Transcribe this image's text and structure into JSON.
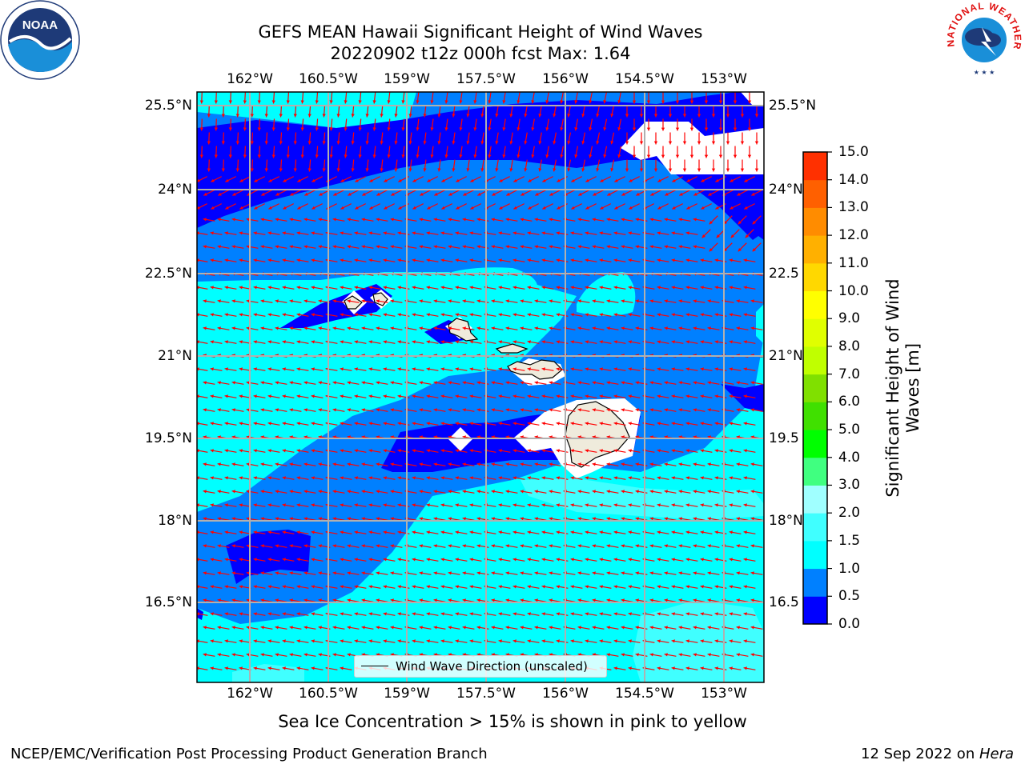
{
  "title": {
    "line1": "GEFS MEAN Hawaii Significant Height of Wind Waves",
    "line2": "20220902 t12z 000h fcst   Max: 1.64"
  },
  "map": {
    "lon_ticks": [
      "162°W",
      "160.5°W",
      "159°W",
      "157.5°W",
      "156°W",
      "154.5°W",
      "153°W"
    ],
    "lat_ticks_left": [
      "25.5°N",
      "24°N",
      "22.5°N",
      "21°N",
      "19.5°N",
      "18°N",
      "16.5°N"
    ],
    "lat_ticks_right": [
      "25.5°N",
      "24°N",
      "22.5",
      "21°N",
      "19.5",
      "18°N",
      "16.5"
    ],
    "legend_label": "Wind Wave Direction (unscaled)",
    "arrow_color": "#ff0000",
    "land_color": "#efebdc"
  },
  "colorbar": {
    "title_line1": "Significant Height of Wind",
    "title_line2": "Waves [m]",
    "ticks": [
      "15.0",
      "14.0",
      "13.0",
      "12.0",
      "11.0",
      "10.0",
      "9.0",
      "8.0",
      "7.0",
      "6.0",
      "5.0",
      "4.0",
      "3.0",
      "2.0",
      "1.5",
      "1.0",
      "0.5",
      "0.0"
    ],
    "colors": [
      "#0000ff",
      "#0080ff",
      "#00ffff",
      "#40ffff",
      "#a0ffff",
      "#40ff80",
      "#00ff00",
      "#40e000",
      "#80e000",
      "#c0ff00",
      "#e0ff00",
      "#ffff00",
      "#ffd800",
      "#ffb000",
      "#ff8c00",
      "#ff6000",
      "#ff3000",
      "#ff0000"
    ]
  },
  "note": "Sea Ice Concentration > 15% is shown in pink to yellow",
  "footer": {
    "left": "NCEP/EMC/Verification Post Processing Product Generation Branch",
    "right_date": "12 Sep 2022 on ",
    "right_host": "Hera"
  },
  "logos": {
    "noaa": "NOAA",
    "nws_top": "NATIONAL WEATHER SERVICE"
  }
}
